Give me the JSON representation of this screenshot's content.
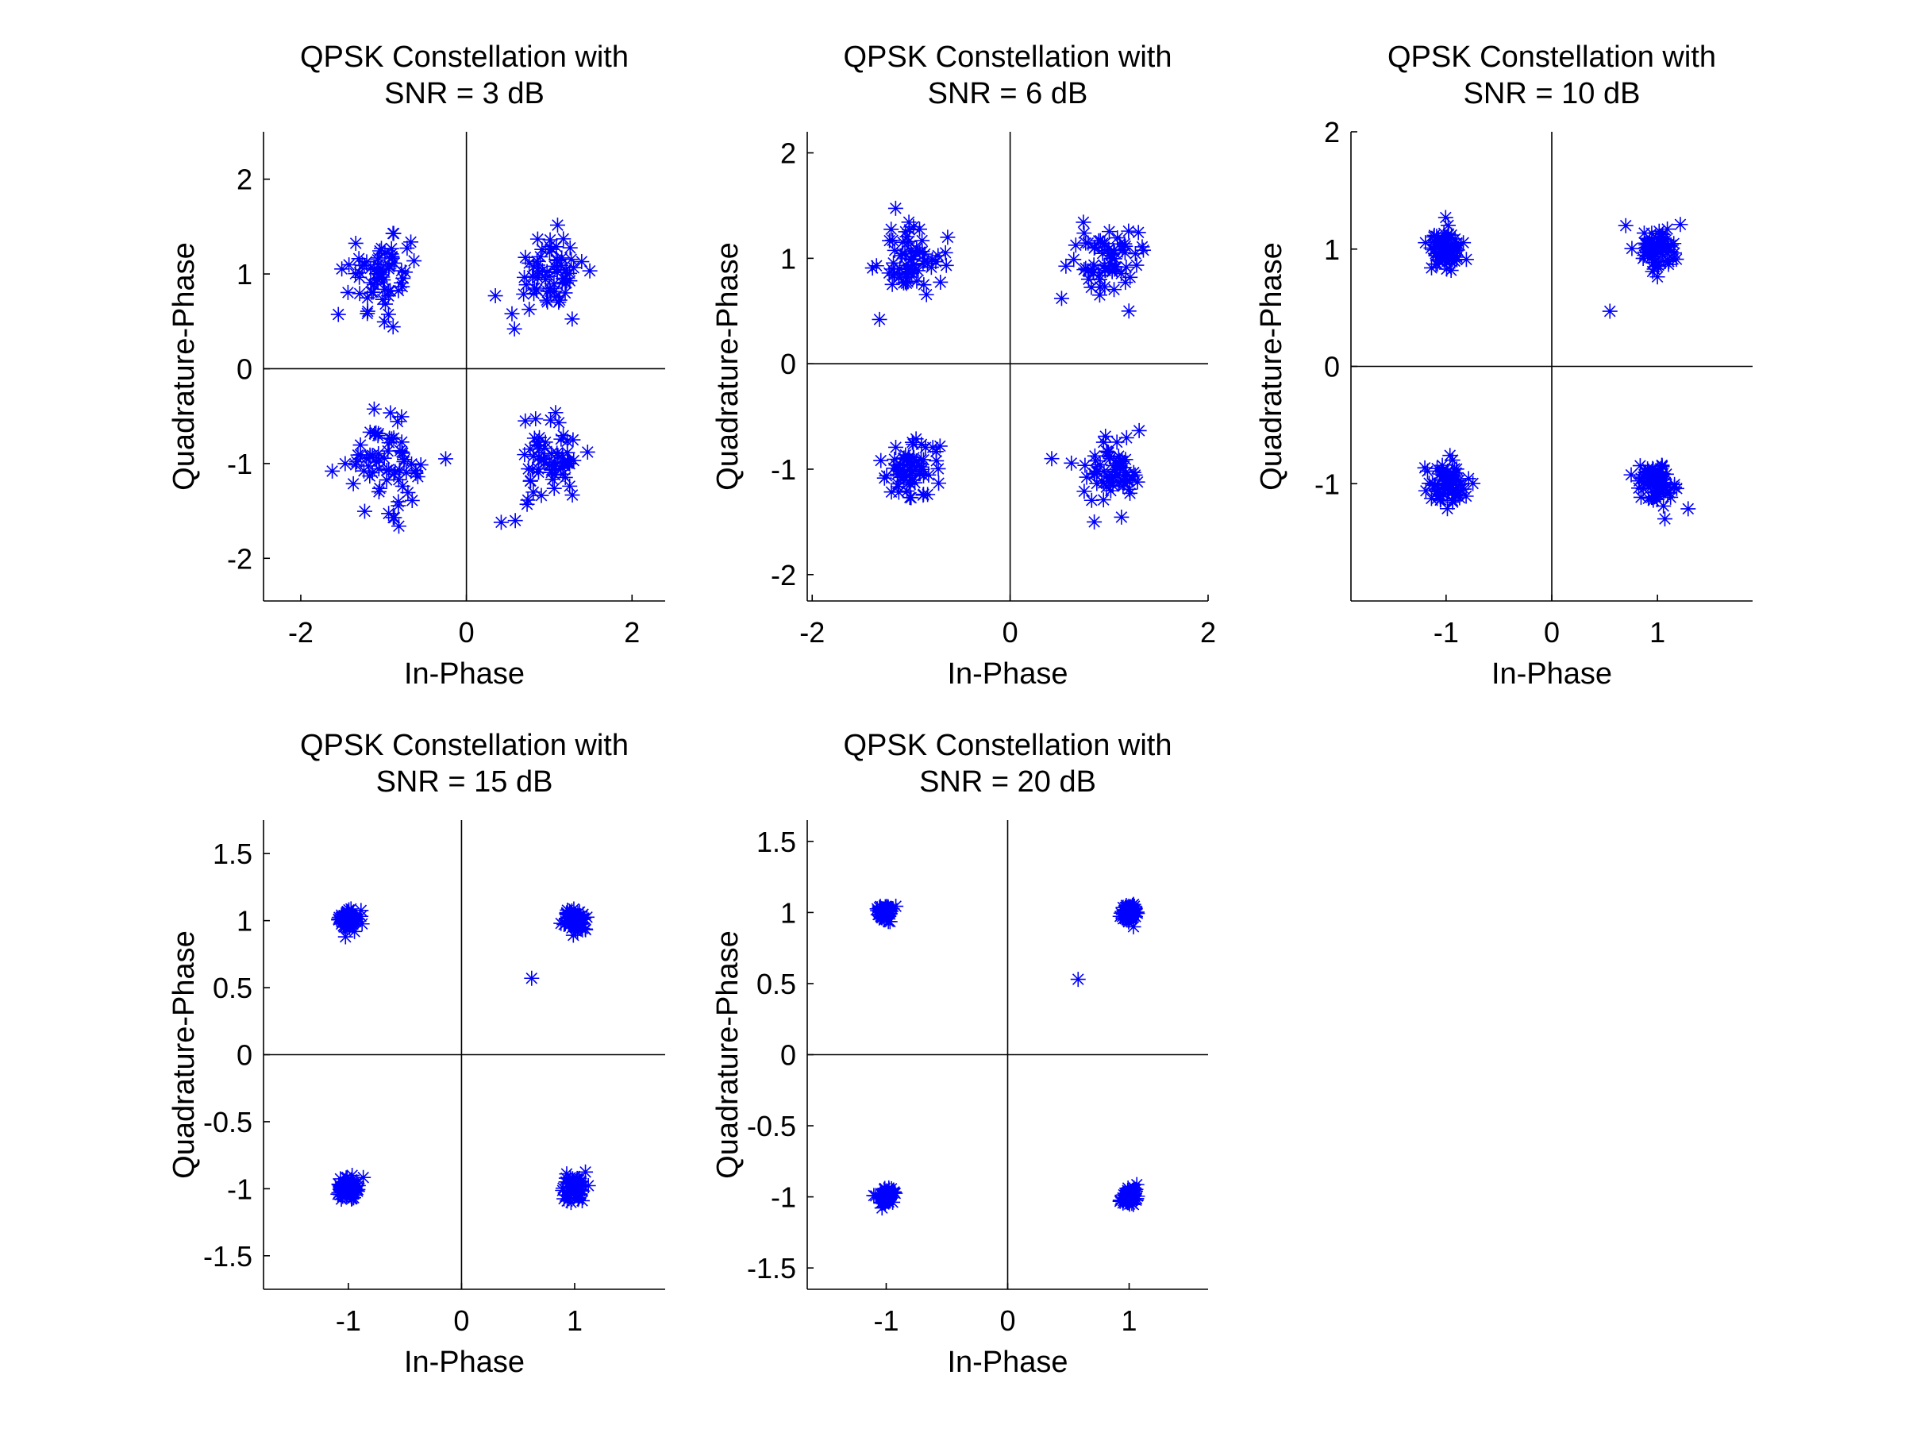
{
  "colors": {
    "marker": "#0000ff",
    "axis": "#000000",
    "background": "#ffffff"
  },
  "chart_data": [
    {
      "type": "scatter",
      "title_lines": [
        "QPSK Constellation with",
        "SNR = 3 dB"
      ],
      "xlabel": "In-Phase",
      "ylabel": "Quadrature-Phase",
      "xlim": [
        -2.45,
        2.4
      ],
      "ylim": [
        -2.45,
        2.5
      ],
      "xticks": [
        -2,
        0,
        2
      ],
      "xtick_labels": [
        "-2",
        "0",
        "2"
      ],
      "yticks": [
        -2,
        -1,
        0,
        1,
        2
      ],
      "ytick_labels": [
        "-2",
        "-1",
        "0",
        "1",
        "2"
      ],
      "grid": false,
      "marker": "asterisk",
      "noise_sigma": 0.21,
      "points_per_cluster": 65,
      "cluster_centers": [
        [
          1,
          1
        ],
        [
          -1,
          1
        ],
        [
          -1,
          -1
        ],
        [
          1,
          -1
        ]
      ],
      "outliers": [
        [
          0.35,
          0.77
        ],
        [
          0.55,
          0.58
        ],
        [
          -0.25,
          -0.95
        ],
        [
          0.42,
          -1.62
        ],
        [
          -1.62,
          -1.08
        ]
      ]
    },
    {
      "type": "scatter",
      "title_lines": [
        "QPSK Constellation with",
        "SNR = 6 dB"
      ],
      "xlabel": "In-Phase",
      "ylabel": "Quadrature-Phase",
      "xlim": [
        -2.05,
        2.0
      ],
      "ylim": [
        -2.25,
        2.2
      ],
      "xticks": [
        -2,
        0,
        2
      ],
      "xtick_labels": [
        "-2",
        "0",
        "2"
      ],
      "yticks": [
        -2,
        -1,
        0,
        1,
        2
      ],
      "ytick_labels": [
        "-2",
        "-1",
        "0",
        "1",
        "2"
      ],
      "grid": false,
      "marker": "asterisk",
      "noise_sigma": 0.15,
      "points_per_cluster": 65,
      "cluster_centers": [
        [
          1,
          1
        ],
        [
          -1,
          1
        ],
        [
          -1,
          -1
        ],
        [
          1,
          -1
        ]
      ],
      "outliers": [
        [
          -1.32,
          0.42
        ],
        [
          0.52,
          0.62
        ],
        [
          1.2,
          0.5
        ],
        [
          0.42,
          -0.9
        ],
        [
          0.85,
          -1.5
        ]
      ]
    },
    {
      "type": "scatter",
      "title_lines": [
        "QPSK Constellation with",
        "SNR = 10 dB"
      ],
      "xlabel": "In-Phase",
      "ylabel": "Quadrature-Phase",
      "xlim": [
        -1.9,
        1.9
      ],
      "ylim": [
        -2.0,
        2.0
      ],
      "xticks": [
        -1,
        0,
        1
      ],
      "xtick_labels": [
        "-1",
        "0",
        "1"
      ],
      "yticks": [
        -1,
        0,
        1,
        2
      ],
      "ytick_labels": [
        "-1",
        "0",
        "1",
        "2"
      ],
      "grid": false,
      "marker": "asterisk",
      "noise_sigma": 0.09,
      "points_per_cluster": 70,
      "cluster_centers": [
        [
          1,
          1
        ],
        [
          -1,
          1
        ],
        [
          -1,
          -1
        ],
        [
          1,
          -1
        ]
      ],
      "outliers": [
        [
          0.55,
          0.47
        ],
        [
          0.7,
          1.2
        ],
        [
          1.07,
          -1.3
        ]
      ]
    },
    {
      "type": "scatter",
      "title_lines": [
        "QPSK Constellation with",
        "SNR = 15 dB"
      ],
      "xlabel": "In-Phase",
      "ylabel": "Quadrature-Phase",
      "xlim": [
        -1.75,
        1.8
      ],
      "ylim": [
        -1.75,
        1.75
      ],
      "xticks": [
        -1,
        0,
        1
      ],
      "xtick_labels": [
        "-1",
        "0",
        "1"
      ],
      "yticks": [
        -1.5,
        -1,
        -0.5,
        0,
        0.5,
        1,
        1.5
      ],
      "ytick_labels": [
        "-1.5",
        "-1",
        "-0.5",
        "0",
        "0.5",
        "1",
        "1.5"
      ],
      "grid": false,
      "marker": "asterisk",
      "noise_sigma": 0.045,
      "points_per_cluster": 70,
      "cluster_centers": [
        [
          1,
          1
        ],
        [
          -1,
          1
        ],
        [
          -1,
          -1
        ],
        [
          1,
          -1
        ]
      ],
      "outliers": [
        [
          0.62,
          0.57
        ]
      ]
    },
    {
      "type": "scatter",
      "title_lines": [
        "QPSK Constellation with",
        "SNR = 20 dB"
      ],
      "xlabel": "In-Phase",
      "ylabel": "Quadrature-Phase",
      "xlim": [
        -1.65,
        1.65
      ],
      "ylim": [
        -1.65,
        1.65
      ],
      "xticks": [
        -1,
        0,
        1
      ],
      "xtick_labels": [
        "-1",
        "0",
        "1"
      ],
      "yticks": [
        -1.5,
        -1,
        -0.5,
        0,
        0.5,
        1,
        1.5
      ],
      "ytick_labels": [
        "-1.5",
        "-1",
        "-0.5",
        "0",
        "0.5",
        "1",
        "1.5"
      ],
      "grid": false,
      "marker": "asterisk",
      "noise_sigma": 0.03,
      "points_per_cluster": 70,
      "cluster_centers": [
        [
          1,
          1
        ],
        [
          -1,
          1
        ],
        [
          -1,
          -1
        ],
        [
          1,
          -1
        ]
      ],
      "outliers": [
        [
          0.58,
          0.53
        ]
      ]
    }
  ]
}
